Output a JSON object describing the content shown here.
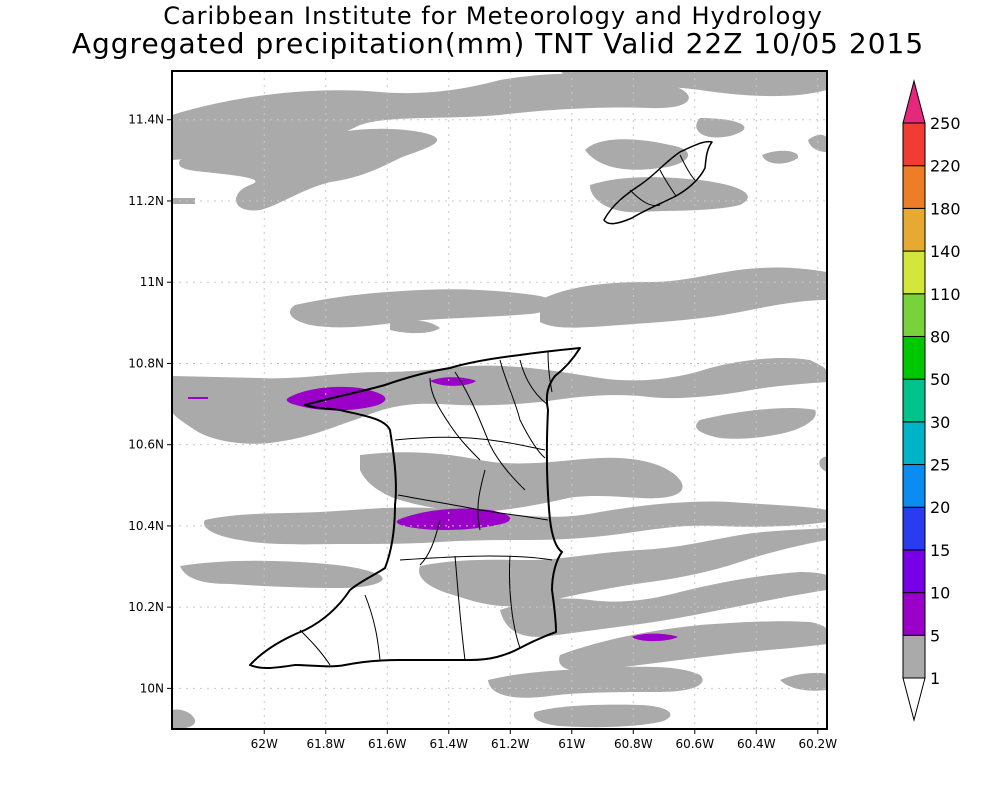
{
  "header": {
    "title": "Caribbean Institute for Meteorology and Hydrology",
    "subtitle": "Aggregated precipitation(mm) TNT Valid 22Z 10/05 2015"
  },
  "map": {
    "lon_range": [
      -62.3,
      -60.17
    ],
    "lat_range": [
      9.9,
      11.52
    ],
    "lat_ticks": [
      {
        "value": 11.4,
        "label": "11.4N"
      },
      {
        "value": 11.2,
        "label": "11.2N"
      },
      {
        "value": 11.0,
        "label": "11N"
      },
      {
        "value": 10.8,
        "label": "10.8N"
      },
      {
        "value": 10.6,
        "label": "10.6N"
      },
      {
        "value": 10.4,
        "label": "10.4N"
      },
      {
        "value": 10.2,
        "label": "10.2N"
      },
      {
        "value": 10.0,
        "label": "10N"
      }
    ],
    "lon_ticks": [
      {
        "value": -62.0,
        "label": "62W"
      },
      {
        "value": -61.8,
        "label": "61.8W"
      },
      {
        "value": -61.6,
        "label": "61.6W"
      },
      {
        "value": -61.4,
        "label": "61.4W"
      },
      {
        "value": -61.2,
        "label": "61.2W"
      },
      {
        "value": -61.0,
        "label": "61W"
      },
      {
        "value": -60.8,
        "label": "60.8W"
      },
      {
        "value": -60.6,
        "label": "60.6W"
      },
      {
        "value": -60.4,
        "label": "60.4W"
      },
      {
        "value": -60.2,
        "label": "60.2W"
      }
    ],
    "grid": true,
    "colors": {
      "light_rain": "#aaaaaa",
      "moderate_rain": "#9a00c8",
      "coast": "#000000"
    }
  },
  "legend": {
    "bins": [
      {
        "label": "1",
        "color": "#aaaaaa"
      },
      {
        "label": "5",
        "color": "#9a00c8"
      },
      {
        "label": "10",
        "color": "#7800e6"
      },
      {
        "label": "15",
        "color": "#2a3cf0"
      },
      {
        "label": "20",
        "color": "#0a8cf0"
      },
      {
        "label": "25",
        "color": "#00b4c8"
      },
      {
        "label": "30",
        "color": "#00c38c"
      },
      {
        "label": "50",
        "color": "#00c800"
      },
      {
        "label": "80",
        "color": "#78d23c"
      },
      {
        "label": "110",
        "color": "#d2e63c"
      },
      {
        "label": "140",
        "color": "#e6aa32"
      },
      {
        "label": "180",
        "color": "#ee7d28"
      },
      {
        "label": "220",
        "color": "#f03c32"
      },
      {
        "label": "250",
        "color": "#e6287d"
      }
    ],
    "bottom_color": "#ffffff",
    "top_color": "#e6287d"
  }
}
